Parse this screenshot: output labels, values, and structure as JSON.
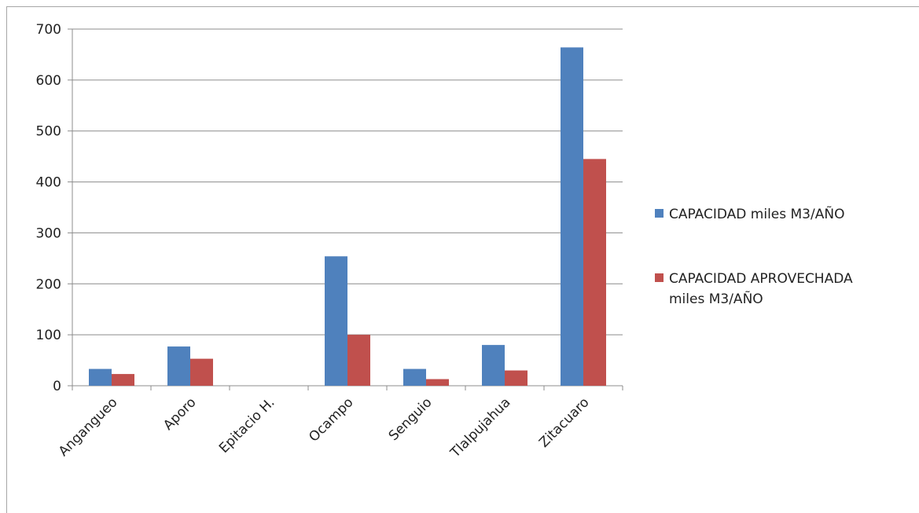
{
  "chart_data": {
    "type": "bar",
    "categories": [
      "Angangueo",
      "Aporo",
      "Epitacio H.",
      "Ocampo",
      "Senguio",
      "Tlalpujahua",
      "Zitacuaro"
    ],
    "series": [
      {
        "name": "CAPACIDAD miles M3/AÑO",
        "color": "#4f81bd",
        "values": [
          33,
          77,
          0,
          254,
          33,
          80,
          664
        ]
      },
      {
        "name": "CAPACIDAD APROVECHADA miles M3/AÑO",
        "color": "#c0504d",
        "values": [
          23,
          53,
          0,
          100,
          13,
          30,
          445
        ]
      }
    ],
    "ylim": [
      0,
      700
    ],
    "yticks": [
      "0",
      "100",
      "200",
      "300",
      "400",
      "500",
      "600",
      "700"
    ],
    "grid": true,
    "legend_position": "right",
    "legend_lines": [
      [
        "CAPACIDAD miles M3/AÑO"
      ],
      [
        "CAPACIDAD APROVECHADA",
        "miles M3/AÑO"
      ]
    ]
  }
}
